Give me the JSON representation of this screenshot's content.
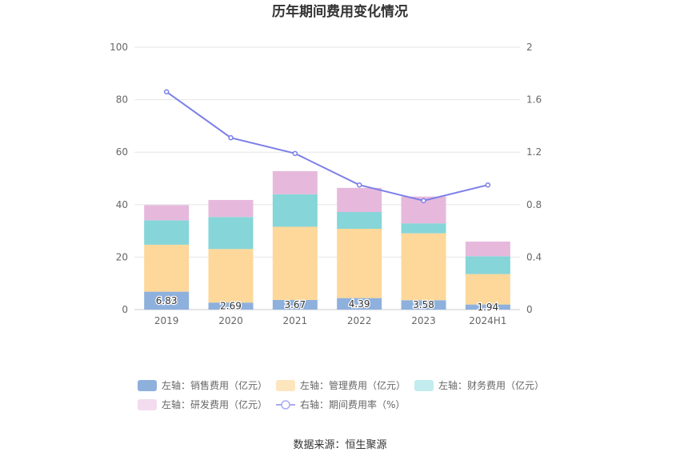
{
  "chart_data": {
    "type": "bar",
    "title": "历年期间费用变化情况",
    "categories": [
      "2019",
      "2020",
      "2021",
      "2022",
      "2023",
      "2024H1"
    ],
    "y_left": {
      "range": [
        0,
        100
      ],
      "ticks": [
        "0",
        "20",
        "40",
        "60",
        "80",
        "100"
      ]
    },
    "y_right": {
      "range": [
        0,
        2
      ],
      "ticks": [
        "0",
        "0.4",
        "0.8",
        "1.2",
        "1.6",
        "2"
      ]
    },
    "stacked": true,
    "series": [
      {
        "name": "左轴：销售费用（亿元）",
        "axis": "left",
        "color": "#8eb0dd",
        "values": [
          6.83,
          2.69,
          3.67,
          4.39,
          3.58,
          1.94
        ],
        "labels": [
          "6.83",
          "2.69",
          "3.67",
          "4.39",
          "3.58",
          "1.94"
        ]
      },
      {
        "name": "左轴：管理费用（亿元）",
        "axis": "left",
        "color": "#fdd89a",
        "values": [
          17.9,
          20.4,
          27.9,
          26.4,
          25.5,
          11.6
        ]
      },
      {
        "name": "左轴：财务费用（亿元）",
        "axis": "left",
        "color": "#86d5d8",
        "values": [
          9.3,
          12.2,
          12.4,
          6.4,
          3.8,
          6.8
        ]
      },
      {
        "name": "左轴：研发费用（亿元）",
        "axis": "left",
        "color": "#e6b9dc",
        "values": [
          5.8,
          6.5,
          8.8,
          9.2,
          10.2,
          5.6
        ]
      },
      {
        "name": "右轴：期间费用率（%）",
        "axis": "right",
        "type": "line",
        "color": "#7b7fe8",
        "values": [
          1.66,
          1.31,
          1.19,
          0.95,
          0.83,
          0.95
        ]
      }
    ],
    "legend": [
      {
        "label": "左轴：销售费用（亿元）",
        "color": "#8eb0dd",
        "kind": "rect"
      },
      {
        "label": "左轴：管理费用（亿元）",
        "color": "#fde5bd",
        "kind": "rect"
      },
      {
        "label": "左轴：财务费用（亿元）",
        "color": "#c2ecee",
        "kind": "rect"
      },
      {
        "label": "左轴：研发费用（亿元）",
        "color": "#f2dcee",
        "kind": "rect"
      },
      {
        "label": "右轴：期间费用率（%）",
        "color": "#a9acf0",
        "kind": "line"
      }
    ],
    "legend_position": "bottom",
    "grid": true,
    "source": "数据来源：恒生聚源"
  }
}
